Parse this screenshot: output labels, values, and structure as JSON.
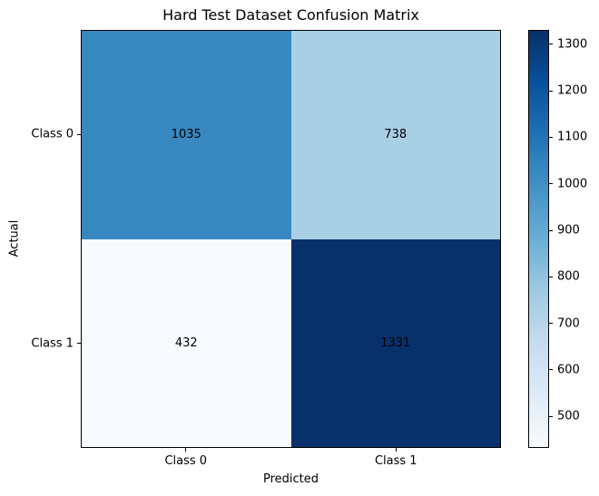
{
  "chart_data": {
    "type": "heatmap",
    "title": "Hard Test Dataset Confusion Matrix",
    "xlabel": "Predicted",
    "ylabel": "Actual",
    "x_categories": [
      "Class 0",
      "Class 1"
    ],
    "y_categories": [
      "Class 0",
      "Class 1"
    ],
    "matrix": [
      [
        1035,
        738
      ],
      [
        432,
        1331
      ]
    ],
    "vmin": 432,
    "vmax": 1331,
    "colormap": "Blues",
    "colormap_stops": [
      "#f7fbff",
      "#deebf7",
      "#c6dbef",
      "#9ecae1",
      "#6baed6",
      "#4292c6",
      "#2171b5",
      "#08519c",
      "#08306b"
    ],
    "cell_colors": [
      [
        "#3787c0",
        "#a9cfe5"
      ],
      [
        "#f7fbff",
        "#08306b"
      ]
    ],
    "annotation_color": "#000000",
    "colorbar_ticks": [
      500,
      600,
      700,
      800,
      900,
      1000,
      1100,
      1200,
      1300
    ],
    "background_color": "#ffffff",
    "legend_position": "colorbar-right",
    "grid": false
  }
}
